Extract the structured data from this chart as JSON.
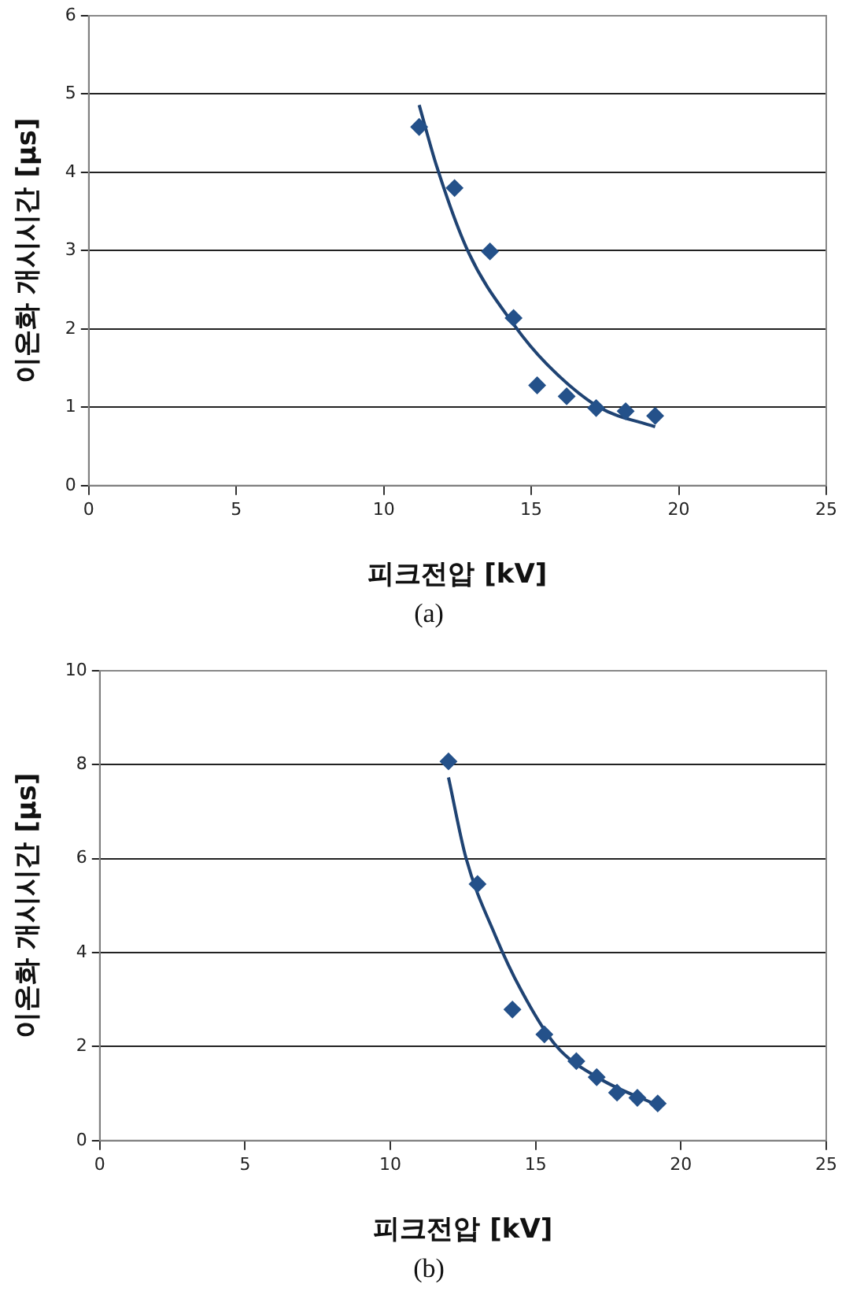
{
  "chart_data": [
    {
      "type": "scatter",
      "xlabel": "피크전압 [kV]",
      "ylabel": "이온화 개시시간 [μs]",
      "annotations": [
        "(a)"
      ],
      "xlim": [
        0,
        25
      ],
      "xticks": [
        0,
        5,
        10,
        15,
        20,
        25
      ],
      "ylim": [
        0,
        6
      ],
      "yticks": [
        0,
        1,
        2,
        3,
        4,
        5,
        6
      ],
      "grid": "y",
      "marker": "diamond",
      "series": [
        {
          "color": "#24518a",
          "x": [
            11.2,
            12.4,
            13.6,
            14.4,
            15.2,
            16.2,
            17.2,
            18.2,
            19.2
          ],
          "values": [
            4.58,
            3.8,
            2.99,
            2.14,
            1.28,
            1.14,
            0.99,
            0.95,
            0.89
          ]
        },
        {
          "type": "line",
          "color": "#1f4373",
          "marker": "none",
          "x": [
            11.2,
            11.8,
            12.87,
            14.4,
            15.53,
            17.3,
            19.2
          ],
          "values": [
            4.86,
            4.07,
            2.98,
            2.06,
            1.55,
            1.0,
            0.75
          ]
        }
      ]
    },
    {
      "type": "scatter",
      "xlabel": "피크전압 [kV]",
      "ylabel": "이온화 개시시간 [μs]",
      "annotations": [
        "(b)"
      ],
      "xlim": [
        0,
        25
      ],
      "xticks": [
        0,
        5,
        10,
        15,
        20,
        25
      ],
      "ylim": [
        0,
        10
      ],
      "yticks": [
        0,
        2,
        4,
        6,
        8,
        10
      ],
      "grid": "y",
      "marker": "diamond",
      "series": [
        {
          "color": "#24518a",
          "x": [
            12.0,
            13.0,
            14.2,
            15.3,
            16.4,
            17.1,
            17.8,
            18.5,
            19.2
          ],
          "values": [
            8.07,
            5.46,
            2.79,
            2.26,
            1.69,
            1.35,
            1.02,
            0.91,
            0.79
          ]
        },
        {
          "type": "line",
          "color": "#1f4373",
          "marker": "none",
          "x": [
            12.0,
            12.6,
            13.6,
            14.5,
            15.7,
            17.2,
            19.2
          ],
          "values": [
            7.73,
            6.02,
            4.38,
            3.2,
            2.02,
            1.32,
            0.75
          ]
        }
      ]
    }
  ]
}
